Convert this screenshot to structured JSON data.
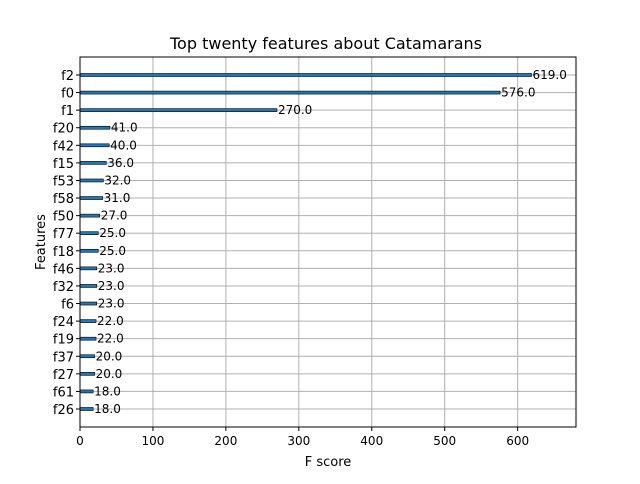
{
  "chart_data": {
    "type": "bar",
    "orientation": "horizontal",
    "title": "Top twenty features about Catamarans",
    "xlabel": "F score",
    "ylabel": "Features",
    "xlim": [
      0,
      680
    ],
    "xticks": [
      0,
      100,
      200,
      300,
      400,
      500,
      600
    ],
    "grid": true,
    "bar_color": "#1f77b4",
    "categories": [
      "f2",
      "f0",
      "f1",
      "f20",
      "f42",
      "f15",
      "f53",
      "f58",
      "f50",
      "f77",
      "f18",
      "f46",
      "f32",
      "f6",
      "f24",
      "f19",
      "f37",
      "f27",
      "f61",
      "f26"
    ],
    "values": [
      619.0,
      576.0,
      270.0,
      41.0,
      40.0,
      36.0,
      32.0,
      31.0,
      27.0,
      25.0,
      25.0,
      23.0,
      23.0,
      23.0,
      22.0,
      22.0,
      20.0,
      20.0,
      18.0,
      18.0
    ],
    "value_labels": [
      "619.0",
      "576.0",
      "270.0",
      "41.0",
      "40.0",
      "36.0",
      "32.0",
      "31.0",
      "27.0",
      "25.0",
      "25.0",
      "23.0",
      "23.0",
      "23.0",
      "22.0",
      "22.0",
      "20.0",
      "20.0",
      "18.0",
      "18.0"
    ]
  }
}
